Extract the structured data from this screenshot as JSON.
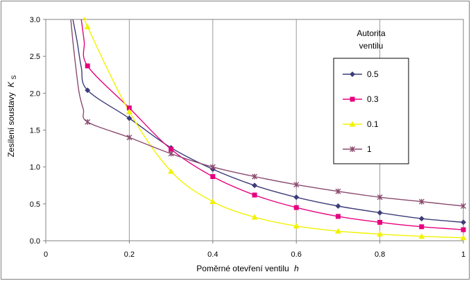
{
  "chart_data": {
    "type": "line",
    "title": "",
    "xlabel": "Poměrné otevření ventilu",
    "xlabel_var": "h",
    "ylabel": "Zesílení soustavy",
    "ylabel_var": "K",
    "ylabel_sub": "S",
    "xlim": [
      0,
      1
    ],
    "ylim": [
      0,
      3.0
    ],
    "x_ticks": [
      0,
      0.2,
      0.4,
      0.6,
      0.8,
      1
    ],
    "x_tick_labels": [
      "0",
      "0.2",
      "0.4",
      "0.6",
      "0.8",
      "1"
    ],
    "y_ticks": [
      0,
      0.5,
      1.0,
      1.5,
      2.0,
      2.5,
      3.0
    ],
    "y_tick_labels": [
      "0.0",
      "0.5",
      "1.0",
      "1.5",
      "2.0",
      "2.5",
      "3.0"
    ],
    "grid": "vertical",
    "legend": {
      "title_line1": "Autorita",
      "title_line2": "ventilu",
      "placement": "right"
    },
    "series": [
      {
        "name": "0.5",
        "color": "#3c3c7a",
        "marker": "diamond",
        "x": [
          0.1,
          0.2,
          0.3,
          0.4,
          0.5,
          0.6,
          0.7,
          0.8,
          0.9,
          1.0
        ],
        "y": [
          2.04,
          1.66,
          1.26,
          0.97,
          0.75,
          0.59,
          0.47,
          0.38,
          0.3,
          0.25
        ],
        "tail_x": [
          0.065,
          0.075,
          0.085
        ],
        "tail_y": [
          3.0,
          2.7,
          2.35
        ]
      },
      {
        "name": "0.3",
        "color": "#e6007e",
        "marker": "square",
        "x": [
          0.1,
          0.2,
          0.3,
          0.4,
          0.5,
          0.6,
          0.7,
          0.8,
          0.9,
          1.0
        ],
        "y": [
          2.37,
          1.8,
          1.24,
          0.87,
          0.62,
          0.45,
          0.33,
          0.25,
          0.19,
          0.15
        ],
        "tail_x": [
          0.085,
          0.092
        ],
        "tail_y": [
          3.0,
          2.7
        ]
      },
      {
        "name": "0.1",
        "color": "#f2f200",
        "marker": "triangle",
        "x": [
          0.1,
          0.2,
          0.3,
          0.4,
          0.5,
          0.6,
          0.7,
          0.8,
          0.9,
          1.0
        ],
        "y": [
          2.9,
          1.75,
          0.94,
          0.53,
          0.32,
          0.2,
          0.13,
          0.09,
          0.06,
          0.04
        ],
        "tail_x": [
          0.097
        ],
        "tail_y": [
          3.0
        ]
      },
      {
        "name": "1",
        "color": "#8a4a6e",
        "marker": "star",
        "x": [
          0.1,
          0.2,
          0.3,
          0.4,
          0.5,
          0.6,
          0.7,
          0.8,
          0.9,
          1.0
        ],
        "y": [
          1.61,
          1.4,
          1.18,
          1.0,
          0.87,
          0.76,
          0.67,
          0.59,
          0.53,
          0.47
        ],
        "tail_x": [
          0.06,
          0.065,
          0.072,
          0.08,
          0.09
        ],
        "tail_y": [
          3.0,
          2.7,
          2.35,
          2.0,
          1.78
        ]
      }
    ]
  }
}
